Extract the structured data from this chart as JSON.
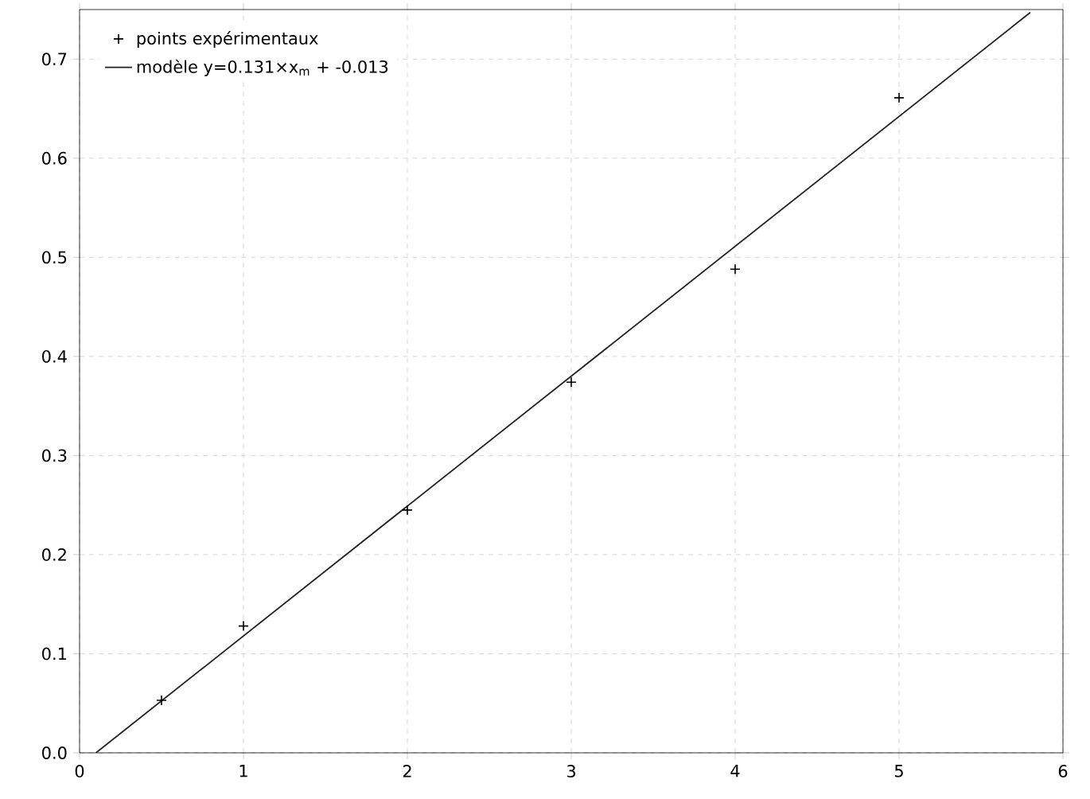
{
  "chart_data": {
    "type": "scatter",
    "x": [
      0.5,
      1,
      2,
      3,
      4,
      5
    ],
    "series": [
      {
        "name": "points expérimentaux",
        "color": "#000000",
        "values": [
          0.053,
          0.128,
          0.245,
          0.374,
          0.488,
          0.661
        ],
        "marker": "cross"
      },
      {
        "name": "modèle y=0.131×x$_{m}$ + -0.013",
        "type": "line",
        "color": "#222222",
        "x": [
          0.1,
          5.8
        ],
        "values": [
          0.0,
          0.747
        ],
        "marker": "none",
        "line_style": "solid"
      }
    ],
    "xlim": [
      0,
      6
    ],
    "ylim": [
      0,
      0.75
    ],
    "xticks": [
      0,
      1,
      2,
      3,
      4,
      5,
      6
    ],
    "yticks": [
      {
        "value": 0,
        "label": "0.0"
      },
      0.1,
      0.2,
      0.3,
      0.4,
      0.5,
      0.6,
      0.7
    ],
    "grid": true,
    "legend": "top left"
  }
}
